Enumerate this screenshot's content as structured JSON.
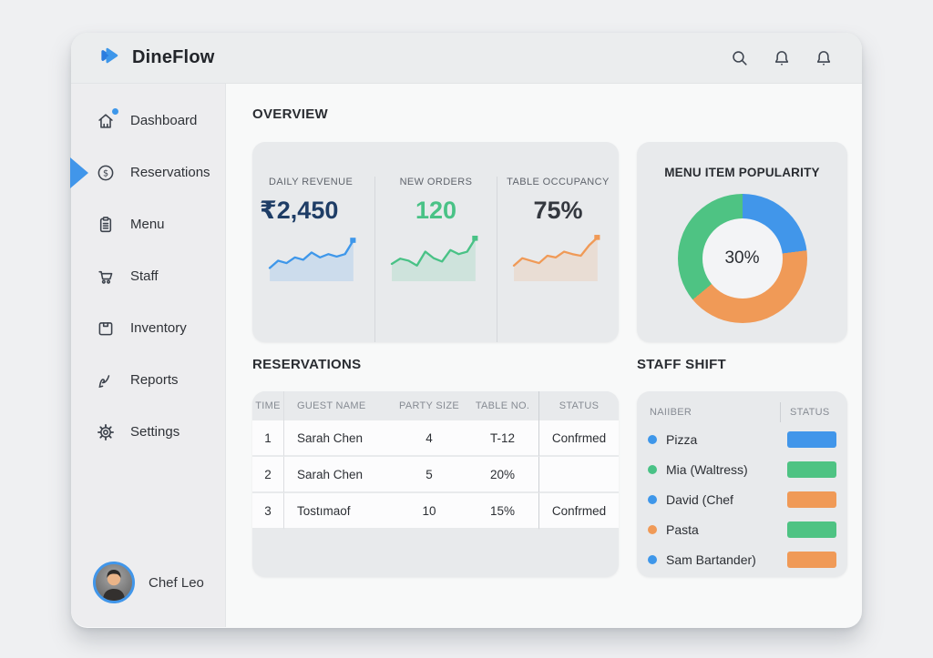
{
  "app": {
    "name": "DineFlow"
  },
  "topbar": {
    "icons": [
      "search",
      "bell",
      "bell"
    ]
  },
  "sidebar": {
    "items": [
      {
        "label": "Dashboard",
        "icon": "home-icon",
        "active": false,
        "has_notification": true
      },
      {
        "label": "Reservations",
        "icon": "dollar-circle-icon",
        "active": true,
        "has_notification": false
      },
      {
        "label": "Menu",
        "icon": "clipboard-icon",
        "active": false,
        "has_notification": false
      },
      {
        "label": "Staff",
        "icon": "cart-icon",
        "active": false,
        "has_notification": false
      },
      {
        "label": "Inventory",
        "icon": "box-icon",
        "active": false,
        "has_notification": false
      },
      {
        "label": "Reports",
        "icon": "report-icon",
        "active": false,
        "has_notification": false
      },
      {
        "label": "Settings",
        "icon": "gear-icon",
        "active": false,
        "has_notification": false
      }
    ],
    "user": {
      "name": "Chef Leo"
    }
  },
  "overview": {
    "section_title": "OVERVIEW",
    "stats": [
      {
        "label": "DAILY REVENUE",
        "value": "₹2,450",
        "value_color": "#1e3d66"
      },
      {
        "label": "NEW ORDERS",
        "value": "120",
        "value_color": "#49c286"
      },
      {
        "label": "TABLE OCCUPANCY",
        "value": "75%",
        "value_color": "#34383f"
      }
    ]
  },
  "menu_popularity": {
    "title": "MENU ITEM POPULARITY",
    "center_label": "30%"
  },
  "reservations": {
    "section_title": "RESERVATIONS",
    "columns": [
      "TIME",
      "GUEST NAME",
      "PARTY SIZE",
      "TABLE NO.",
      "STATUS"
    ],
    "rows": [
      {
        "time": "1",
        "guest": "Sarah Chen",
        "party": "4",
        "table": "T-12",
        "status": "Confrmed"
      },
      {
        "time": "2",
        "guest": "Sarah Chen",
        "party": "5",
        "table": "20%",
        "status": ""
      },
      {
        "time": "3",
        "guest": "Tostımaof",
        "party": "10",
        "table": "15%",
        "status": "Confrmed"
      }
    ]
  },
  "staff_shift": {
    "section_title": "STAFF SHIFT",
    "columns": [
      "NAIIBER",
      "STATUS"
    ],
    "rows": [
      {
        "name": "Pizza",
        "dot_color": "#3e97ea",
        "bar_color": "#4196ea"
      },
      {
        "name": "Mia (Waltress)",
        "dot_color": "#49c286",
        "bar_color": "#4ec383"
      },
      {
        "name": "David (Chef",
        "dot_color": "#3e97ea",
        "bar_color": "#f09a57"
      },
      {
        "name": "Pasta",
        "dot_color": "#f09a57",
        "bar_color": "#4ec383"
      },
      {
        "name": "Sam Bartander)",
        "dot_color": "#3e97ea",
        "bar_color": "#f09a57"
      }
    ]
  },
  "colors": {
    "blue": "#3e97ea",
    "green": "#49c286",
    "orange": "#f09a57",
    "navy": "#1e3d66"
  },
  "chart_data": [
    {
      "type": "pie",
      "title": "MENU ITEM POPULARITY",
      "center_label": "30%",
      "slices": [
        {
          "label": "segment-blue",
          "value": 23,
          "color": "#4196ea"
        },
        {
          "label": "segment-orange",
          "value": 41,
          "color": "#f09a57"
        },
        {
          "label": "segment-green",
          "value": 36,
          "color": "#4ec383"
        }
      ],
      "legend": "none"
    },
    {
      "type": "line",
      "name": "daily-revenue-sparkline",
      "color": "#3e97ea",
      "values": [
        22,
        40,
        34,
        48,
        42,
        60,
        48,
        56,
        50,
        56,
        90
      ]
    },
    {
      "type": "line",
      "name": "new-orders-sparkline",
      "color": "#49c286",
      "values": [
        32,
        45,
        40,
        28,
        62,
        46,
        38,
        66,
        56,
        62,
        95
      ]
    },
    {
      "type": "line",
      "name": "table-occupancy-sparkline",
      "color": "#f09a57",
      "values": [
        28,
        46,
        40,
        34,
        52,
        48,
        62,
        56,
        52,
        78,
        97
      ]
    }
  ]
}
